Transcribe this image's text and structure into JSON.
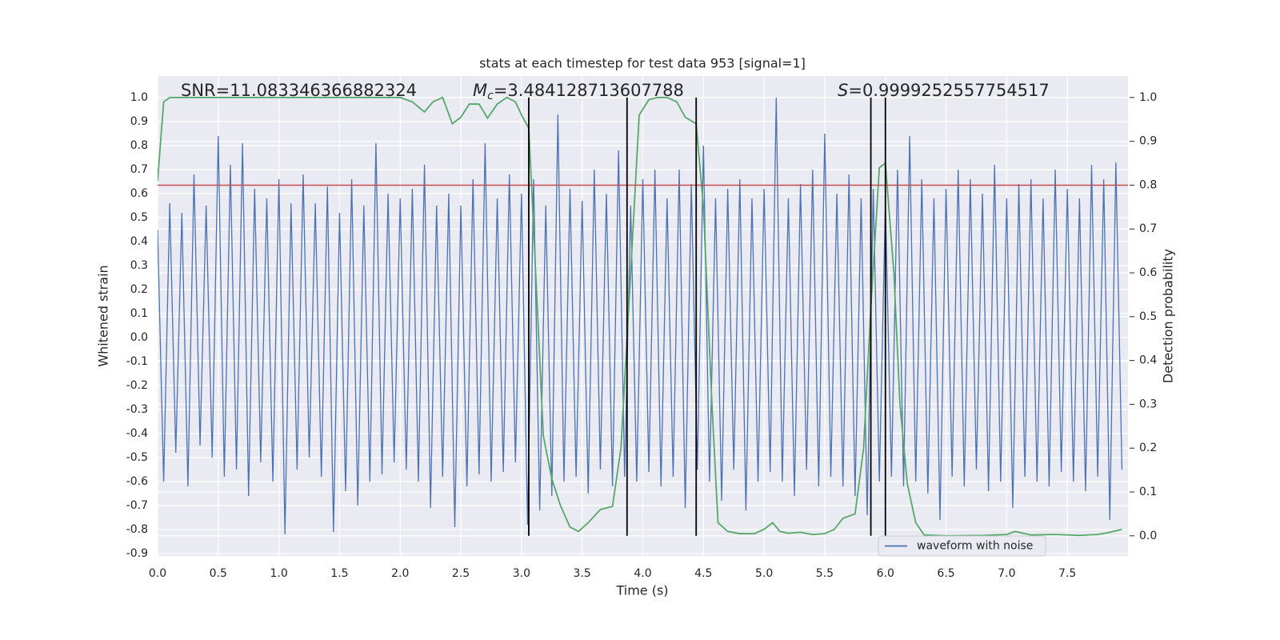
{
  "chart_data": {
    "type": "line",
    "title": "stats at each timestep for test data 953 [signal=1]",
    "xlabel": "Time (s)",
    "ylabel": "Whitened strain",
    "y2label": "Detection probability",
    "xlim": [
      0,
      8.0
    ],
    "ylim": [
      -0.91,
      1.09
    ],
    "y2lim": [
      -0.046,
      1.049
    ],
    "xticks": [
      {
        "value": 0,
        "label": "0.0"
      },
      0.5,
      {
        "value": 1,
        "label": "1.0"
      },
      1.5,
      {
        "value": 2,
        "label": "2.0"
      },
      2.5,
      {
        "value": 3,
        "label": "3.0"
      },
      3.5,
      {
        "value": 4,
        "label": "4.0"
      },
      4.5,
      {
        "value": 5,
        "label": "5.0"
      },
      5.5,
      {
        "value": 6,
        "label": "6.0"
      },
      6.5,
      {
        "value": 7,
        "label": "7.0"
      },
      7.5
    ],
    "yticks": [
      -0.9,
      -0.8,
      -0.7,
      -0.6,
      -0.5,
      -0.4,
      -0.3,
      -0.2,
      -0.1,
      {
        "value": 0,
        "label": "0.0"
      },
      0.1,
      0.2,
      0.3,
      0.4,
      0.5,
      0.6,
      0.7,
      0.8,
      0.9,
      {
        "value": 1,
        "label": "1.0"
      }
    ],
    "y2ticks": [
      {
        "value": 0,
        "label": "0.0"
      },
      0.1,
      0.2,
      0.3,
      0.4,
      0.5,
      0.6,
      0.7,
      0.8,
      0.9,
      {
        "value": 1,
        "label": "1.0"
      }
    ],
    "grid": true,
    "legend": "lower right",
    "series": [
      {
        "name": "waveform with noise",
        "color": "#4c72b0",
        "x": [
          0.0,
          0.05,
          0.1,
          0.15,
          0.2,
          0.25,
          0.3,
          0.35,
          0.4,
          0.45,
          0.5,
          0.55,
          0.6,
          0.65,
          0.7,
          0.75,
          0.8,
          0.85,
          0.9,
          0.95,
          1.0,
          1.05,
          1.1,
          1.15,
          1.2,
          1.25,
          1.3,
          1.35,
          1.4,
          1.45,
          1.5,
          1.55,
          1.6,
          1.65,
          1.7,
          1.75,
          1.8,
          1.85,
          1.9,
          1.95,
          2.0,
          2.05,
          2.1,
          2.15,
          2.2,
          2.25,
          2.3,
          2.35,
          2.4,
          2.45,
          2.5,
          2.55,
          2.6,
          2.65,
          2.7,
          2.75,
          2.8,
          2.85,
          2.9,
          2.95,
          3.0,
          3.05,
          3.1,
          3.15,
          3.2,
          3.25,
          3.3,
          3.35,
          3.4,
          3.45,
          3.5,
          3.55,
          3.6,
          3.65,
          3.7,
          3.75,
          3.8,
          3.85,
          3.9,
          3.95,
          4.0,
          4.05,
          4.1,
          4.15,
          4.2,
          4.25,
          4.3,
          4.35,
          4.4,
          4.45,
          4.5,
          4.55,
          4.6,
          4.65,
          4.7,
          4.75,
          4.8,
          4.85,
          4.9,
          4.95,
          5.0,
          5.05,
          5.1,
          5.15,
          5.2,
          5.25,
          5.3,
          5.35,
          5.4,
          5.45,
          5.5,
          5.55,
          5.6,
          5.65,
          5.7,
          5.75,
          5.8,
          5.85,
          5.9,
          5.95,
          6.0,
          6.05,
          6.1,
          6.15,
          6.2,
          6.25,
          6.3,
          6.35,
          6.4,
          6.45,
          6.5,
          6.55,
          6.6,
          6.65,
          6.7,
          6.75,
          6.8,
          6.85,
          6.9,
          6.95,
          7.0,
          7.05,
          7.1,
          7.15,
          7.2,
          7.25,
          7.3,
          7.35,
          7.4,
          7.45,
          7.5,
          7.55,
          7.6,
          7.65,
          7.7,
          7.75,
          7.8,
          7.85,
          7.9,
          7.95
        ],
        "values": [
          0.45,
          -0.6,
          0.56,
          -0.48,
          0.52,
          -0.62,
          0.68,
          -0.45,
          0.55,
          -0.5,
          0.84,
          -0.58,
          0.72,
          -0.55,
          0.81,
          -0.66,
          0.62,
          -0.52,
          0.58,
          -0.6,
          0.66,
          -0.82,
          0.56,
          -0.55,
          0.68,
          -0.5,
          0.56,
          -0.58,
          0.63,
          -0.81,
          0.52,
          -0.64,
          0.66,
          -0.7,
          0.55,
          -0.6,
          0.81,
          -0.57,
          0.6,
          -0.52,
          0.58,
          -0.55,
          0.62,
          -0.6,
          0.72,
          -0.71,
          0.55,
          -0.58,
          0.6,
          -0.79,
          0.55,
          -0.62,
          0.66,
          -0.57,
          0.81,
          -0.6,
          0.58,
          -0.56,
          0.68,
          -0.52,
          0.6,
          -0.78,
          0.66,
          -0.72,
          0.55,
          -0.66,
          0.93,
          -0.6,
          0.62,
          -0.58,
          0.57,
          -0.65,
          0.7,
          -0.55,
          0.6,
          -0.62,
          0.78,
          -0.58,
          0.55,
          -0.6,
          0.66,
          -0.56,
          0.7,
          -0.62,
          0.58,
          -0.58,
          0.7,
          -0.71,
          0.64,
          -0.55,
          0.8,
          -0.6,
          0.58,
          -0.68,
          0.62,
          -0.55,
          0.66,
          -0.72,
          0.58,
          -0.6,
          0.62,
          -0.56,
          1.0,
          -0.6,
          0.58,
          -0.66,
          0.64,
          -0.55,
          0.7,
          -0.62,
          0.85,
          -0.58,
          0.6,
          -0.62,
          0.68,
          -0.66,
          0.58,
          -0.74,
          0.62,
          -0.6,
          0.56,
          -0.58,
          0.7,
          -0.62,
          0.84,
          -0.6,
          0.66,
          -0.65,
          0.58,
          -0.76,
          0.62,
          -0.58,
          0.7,
          -0.62,
          0.66,
          -0.55,
          0.6,
          -0.64,
          0.72,
          -0.6,
          0.58,
          -0.71,
          0.64,
          -0.58,
          0.66,
          -0.6,
          0.58,
          -0.62,
          0.7,
          -0.56,
          0.62,
          -0.6,
          0.58,
          -0.64,
          0.72,
          -0.58,
          0.66,
          -0.76,
          0.73,
          -0.55
        ]
      },
      {
        "color": "#55a868",
        "axis": "y2",
        "x": [
          0,
          0.05,
          0.1,
          0.5,
          1.0,
          1.5,
          2.0,
          2.1,
          2.2,
          2.27,
          2.35,
          2.43,
          2.5,
          2.57,
          2.65,
          2.72,
          2.8,
          2.88,
          2.95,
          3.0,
          3.06,
          3.1,
          3.18,
          3.25,
          3.32,
          3.4,
          3.47,
          3.55,
          3.65,
          3.75,
          3.82,
          3.9,
          3.97,
          4.05,
          4.12,
          4.2,
          4.28,
          4.35,
          4.44,
          4.5,
          4.57,
          4.62,
          4.7,
          4.8,
          4.92,
          5.0,
          5.07,
          5.13,
          5.2,
          5.3,
          5.4,
          5.5,
          5.58,
          5.65,
          5.75,
          5.82,
          5.88,
          5.95,
          6.0,
          6.07,
          6.12,
          6.18,
          6.25,
          6.32,
          6.5,
          6.8,
          7.0,
          7.07,
          7.2,
          7.4,
          7.6,
          7.75,
          7.85,
          7.95
        ],
        "values": [
          0.81,
          0.99,
          1.0,
          1.0,
          1.0,
          1.0,
          1.0,
          0.99,
          0.967,
          0.99,
          1.0,
          0.94,
          0.955,
          0.985,
          0.985,
          0.953,
          0.985,
          1.0,
          0.99,
          0.96,
          0.93,
          0.7,
          0.228,
          0.13,
          0.07,
          0.02,
          0.01,
          0.03,
          0.06,
          0.067,
          0.2,
          0.6,
          0.96,
          0.995,
          1.0,
          1.0,
          0.99,
          0.955,
          0.94,
          0.75,
          0.3,
          0.03,
          0.01,
          0.005,
          0.005,
          0.015,
          0.03,
          0.01,
          0.006,
          0.008,
          0.003,
          0.005,
          0.015,
          0.04,
          0.05,
          0.2,
          0.52,
          0.84,
          0.85,
          0.6,
          0.3,
          0.12,
          0.03,
          0.002,
          0.0,
          0.001,
          0.003,
          0.01,
          0.002,
          0.003,
          0.001,
          0.003,
          0.008,
          0.015
        ]
      }
    ],
    "hline": {
      "value": 0.8,
      "axis": "y2",
      "color": "#c44e52"
    },
    "vlines": {
      "x": [
        3.06,
        3.87,
        4.44,
        5.88,
        6.0
      ],
      "ymin": 0,
      "ymax": 1,
      "axis": "y2",
      "color": "#000000"
    },
    "annotations": [
      {
        "text": "SNR=11.083346366882324"
      },
      {
        "symbol": "M",
        "subscript": "c",
        "text": "=3.484128713607788"
      },
      {
        "symbol": "S",
        "text": "=0.9999252557754517"
      }
    ]
  }
}
